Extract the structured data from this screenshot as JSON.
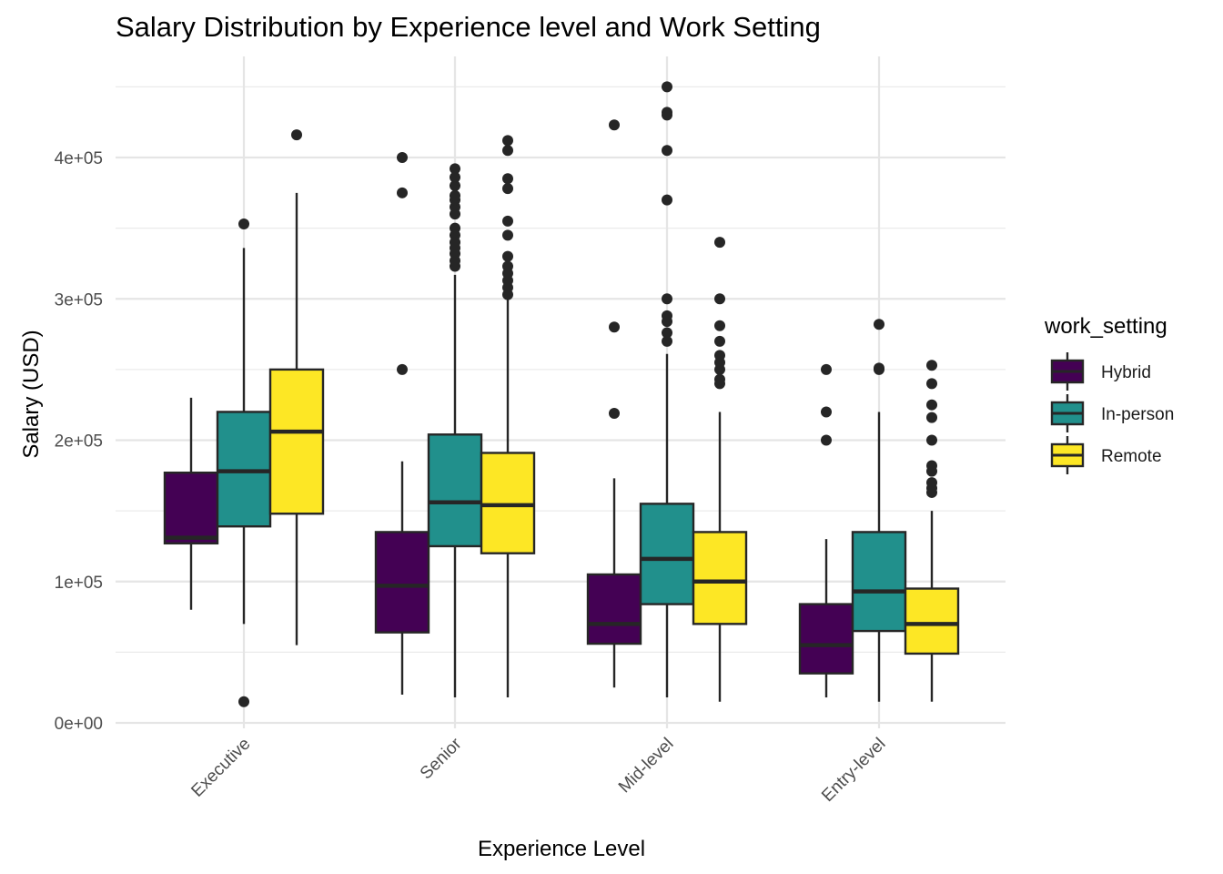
{
  "chart_data": {
    "type": "boxplot",
    "title": "Salary Distribution by Experience level and Work Setting",
    "xlabel": "Experience Level",
    "ylabel": "Salary (USD)",
    "ylim": [
      0,
      460000
    ],
    "y_ticks": [
      0,
      100000,
      200000,
      300000,
      400000
    ],
    "y_tick_labels": [
      "0e+00",
      "1e+05",
      "2e+05",
      "3e+05",
      "4e+05"
    ],
    "grid": true,
    "legend_position": "right",
    "legend_title": "work_setting",
    "categories": [
      "Executive",
      "Senior",
      "Mid-level",
      "Entry-level"
    ],
    "series": [
      {
        "name": "Hybrid",
        "color": "#440154",
        "boxes": [
          {
            "whisker_low": 80000,
            "q1": 127000,
            "median": 131000,
            "q3": 177000,
            "whisker_high": 230000,
            "outliers": []
          },
          {
            "whisker_low": 20000,
            "q1": 64000,
            "median": 97000,
            "q3": 135000,
            "whisker_high": 185000,
            "outliers": [
              250000,
              375000,
              400000
            ]
          },
          {
            "whisker_low": 25000,
            "q1": 56000,
            "median": 70000,
            "q3": 105000,
            "whisker_high": 173000,
            "outliers": [
              219000,
              280000,
              423000
            ]
          },
          {
            "whisker_low": 18000,
            "q1": 35000,
            "median": 55000,
            "q3": 84000,
            "whisker_high": 130000,
            "outliers": [
              200000,
              220000,
              250000
            ]
          }
        ]
      },
      {
        "name": "In-person",
        "color": "#21908C",
        "boxes": [
          {
            "whisker_low": 70000,
            "q1": 139000,
            "median": 178000,
            "q3": 220000,
            "whisker_high": 336000,
            "outliers": [
              15000,
              353000
            ]
          },
          {
            "whisker_low": 18000,
            "q1": 125000,
            "median": 156000,
            "q3": 204000,
            "whisker_high": 317000,
            "outliers": [
              323000,
              327000,
              332000,
              336000,
              340000,
              345000,
              350000,
              360000,
              365000,
              370000,
              373000,
              380000,
              386000,
              392000
            ]
          },
          {
            "whisker_low": 18000,
            "q1": 84000,
            "median": 116000,
            "q3": 155000,
            "whisker_high": 261000,
            "outliers": [
              270000,
              276000,
              284000,
              288000,
              300000,
              370000,
              405000,
              430000,
              432000,
              450000
            ]
          },
          {
            "whisker_low": 15000,
            "q1": 65000,
            "median": 93000,
            "q3": 135000,
            "whisker_high": 220000,
            "outliers": [
              250000,
              251000,
              282000
            ]
          }
        ]
      },
      {
        "name": "Remote",
        "color": "#FDE725",
        "boxes": [
          {
            "whisker_low": 55000,
            "q1": 148000,
            "median": 206000,
            "q3": 250000,
            "whisker_high": 375000,
            "outliers": [
              416000
            ]
          },
          {
            "whisker_low": 18000,
            "q1": 120000,
            "median": 154000,
            "q3": 191000,
            "whisker_high": 300000,
            "outliers": [
              303000,
              308000,
              313000,
              318000,
              323000,
              330000,
              345000,
              355000,
              378000,
              385000,
              405000,
              412000
            ]
          },
          {
            "whisker_low": 15000,
            "q1": 70000,
            "median": 100000,
            "q3": 135000,
            "whisker_high": 220000,
            "outliers": [
              240000,
              243000,
              250000,
              255000,
              260000,
              270000,
              281000,
              300000,
              340000
            ]
          },
          {
            "whisker_low": 15000,
            "q1": 49000,
            "median": 70000,
            "q3": 95000,
            "whisker_high": 150000,
            "outliers": [
              163000,
              166000,
              170000,
              178000,
              182000,
              200000,
              216000,
              225000,
              240000,
              253000
            ]
          }
        ]
      }
    ]
  }
}
